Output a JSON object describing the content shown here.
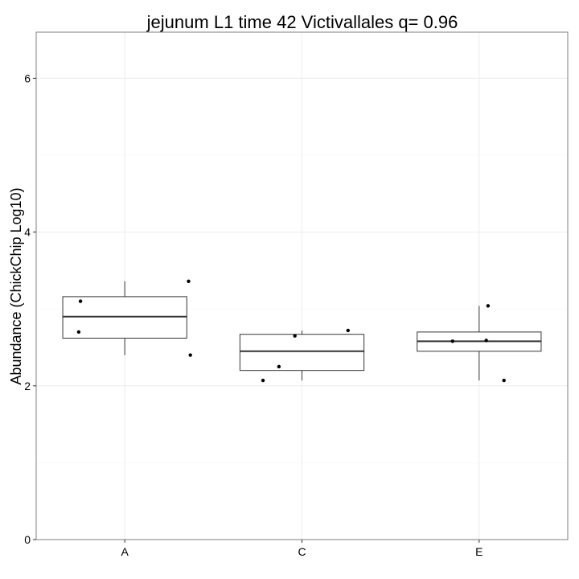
{
  "chart_data": {
    "type": "box",
    "title": "jejunum L1 time 42 Victivallales q= 0.96",
    "xlabel": "",
    "ylabel": "Abundance (ChickChip Log10)",
    "ylim": [
      0,
      6.6
    ],
    "yticks": [
      0,
      2,
      4,
      6
    ],
    "categories": [
      "A",
      "C",
      "E"
    ],
    "grid": true,
    "boxes": [
      {
        "category": "A",
        "whisker_low": 2.4,
        "q1": 2.62,
        "median": 2.9,
        "q3": 3.16,
        "whisker_high": 3.36
      },
      {
        "category": "C",
        "whisker_low": 2.07,
        "q1": 2.2,
        "median": 2.45,
        "q3": 2.67,
        "whisker_high": 2.72
      },
      {
        "category": "E",
        "whisker_low": 2.07,
        "q1": 2.45,
        "median": 2.58,
        "q3": 2.7,
        "whisker_high": 3.04
      }
    ],
    "points": [
      {
        "category": "A",
        "jitter": -0.25,
        "y": 3.1
      },
      {
        "category": "A",
        "jitter": -0.26,
        "y": 2.7
      },
      {
        "category": "A",
        "jitter": 0.36,
        "y": 3.36
      },
      {
        "category": "A",
        "jitter": 0.37,
        "y": 2.4
      },
      {
        "category": "C",
        "jitter": -0.22,
        "y": 2.07
      },
      {
        "category": "C",
        "jitter": -0.13,
        "y": 2.25
      },
      {
        "category": "C",
        "jitter": -0.04,
        "y": 2.65
      },
      {
        "category": "C",
        "jitter": 0.26,
        "y": 2.72
      },
      {
        "category": "E",
        "jitter": -0.15,
        "y": 2.58
      },
      {
        "category": "E",
        "jitter": 0.04,
        "y": 2.59
      },
      {
        "category": "E",
        "jitter": 0.05,
        "y": 3.04
      },
      {
        "category": "E",
        "jitter": 0.14,
        "y": 2.07
      }
    ]
  }
}
